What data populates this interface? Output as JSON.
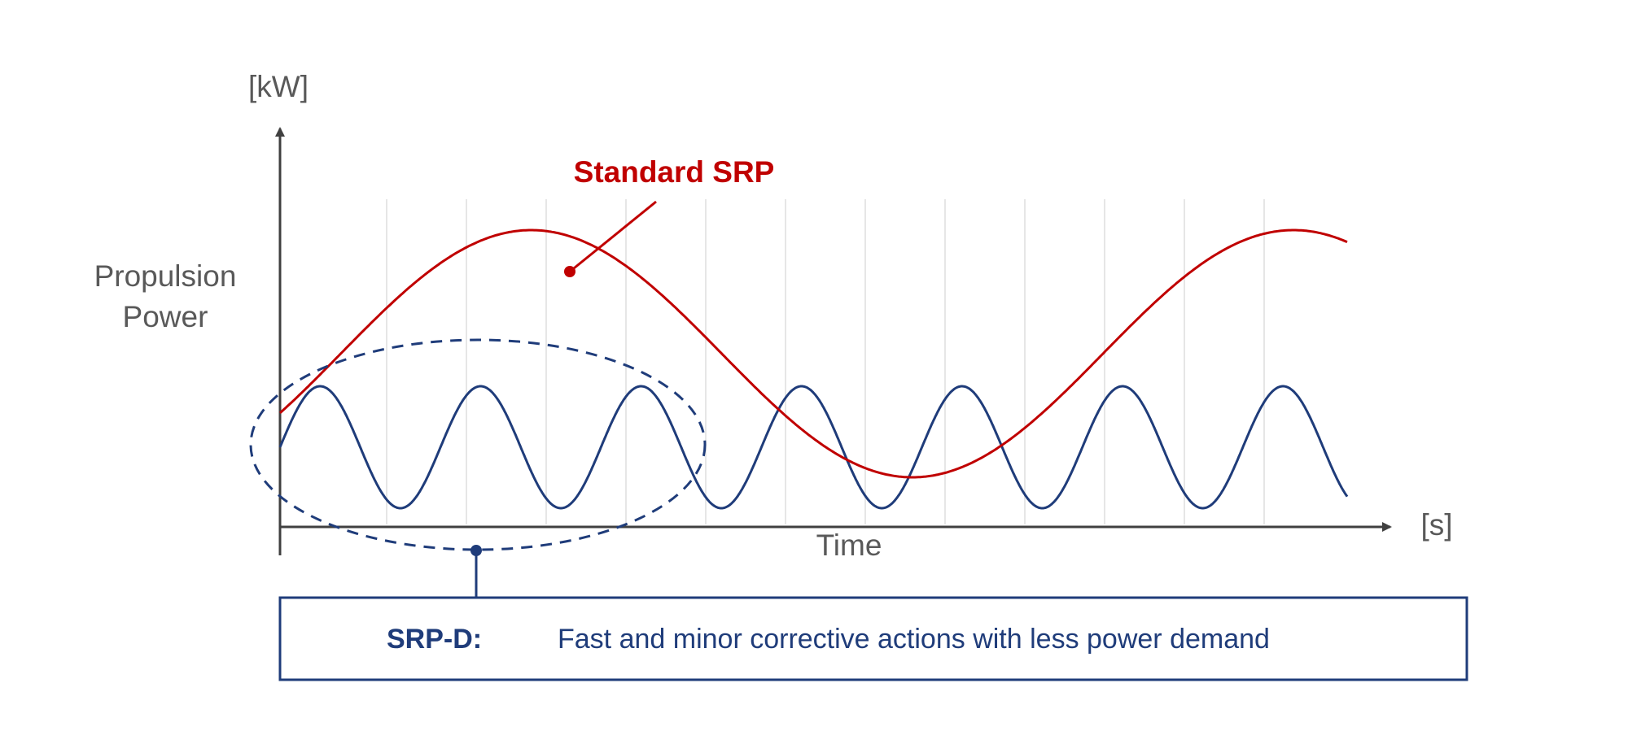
{
  "axes": {
    "y_unit": "[kW]",
    "y_label_line1": "Propulsion",
    "y_label_line2": "Power",
    "x_unit": "[s]",
    "x_label": "Time"
  },
  "series": {
    "standard": {
      "label": "Standard SRP",
      "color": "#c00000",
      "periods_shown": 1.4
    },
    "srp_d": {
      "color": "#1f3c7a",
      "periods_shown": 6.65
    }
  },
  "callout": {
    "key": "SRP-D:",
    "text": "Fast and minor corrective actions with less power demand",
    "color": "#1f3c7a"
  },
  "colors": {
    "axis": "#404040",
    "grid": "#e6e6e6",
    "text": "#595959"
  }
}
